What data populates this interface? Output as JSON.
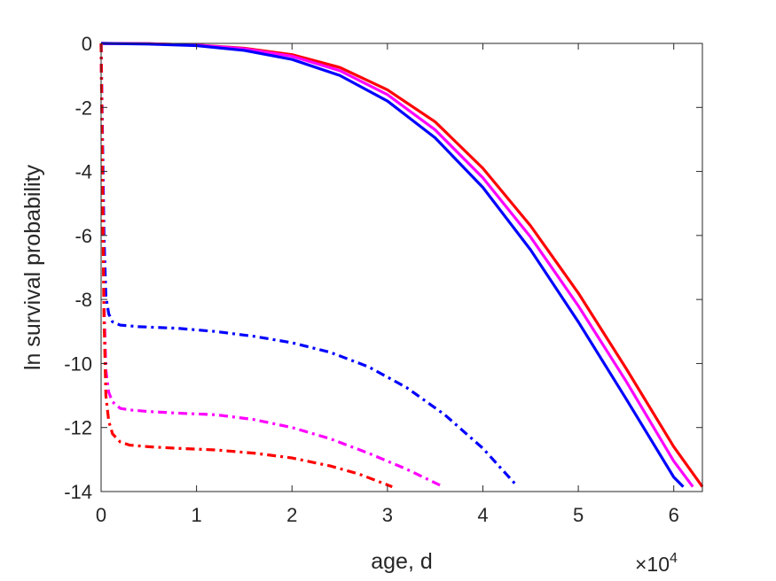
{
  "chart_data": {
    "type": "line",
    "title": "",
    "xlabel": "age, d",
    "ylabel": "ln survival probability",
    "x_exponent_label": "×10",
    "x_exponent": "4",
    "xlim": [
      0,
      63000
    ],
    "ylim": [
      -14,
      0
    ],
    "xticks": [
      0,
      10000,
      20000,
      30000,
      40000,
      50000,
      60000
    ],
    "xtick_labels": [
      "0",
      "1",
      "2",
      "3",
      "4",
      "5",
      "6"
    ],
    "yticks": [
      0,
      -2,
      -4,
      -6,
      -8,
      -10,
      -12,
      -14
    ],
    "ytick_labels": [
      "0",
      "-2",
      "-4",
      "-6",
      "-8",
      "-10",
      "-12",
      "-14"
    ],
    "grid": false,
    "series": [
      {
        "color": "#ff0000",
        "style": "solid",
        "x": [
          0,
          5000,
          10000,
          15000,
          20000,
          25000,
          30000,
          35000,
          40000,
          45000,
          50000,
          55000,
          60000,
          63000
        ],
        "y": [
          0,
          -0.01,
          -0.05,
          -0.15,
          -0.35,
          -0.75,
          -1.45,
          -2.45,
          -3.9,
          -5.7,
          -7.8,
          -10.15,
          -12.6,
          -13.85
        ]
      },
      {
        "color": "#ff00ff",
        "style": "solid",
        "x": [
          0,
          5000,
          10000,
          15000,
          20000,
          25000,
          30000,
          35000,
          40000,
          45000,
          50000,
          55000,
          60000,
          62000
        ],
        "y": [
          0,
          -0.01,
          -0.05,
          -0.17,
          -0.4,
          -0.85,
          -1.6,
          -2.7,
          -4.2,
          -6.05,
          -8.2,
          -10.55,
          -13.05,
          -13.85
        ]
      },
      {
        "color": "#0000ff",
        "style": "solid",
        "x": [
          0,
          5000,
          10000,
          15000,
          20000,
          25000,
          30000,
          35000,
          40000,
          45000,
          50000,
          55000,
          60000,
          61000
        ],
        "y": [
          0,
          -0.02,
          -0.07,
          -0.22,
          -0.5,
          -1.0,
          -1.8,
          -2.95,
          -4.5,
          -6.45,
          -8.7,
          -11.1,
          -13.55,
          -13.85
        ]
      },
      {
        "color": "#0000ff",
        "style": "dashdot",
        "x": [
          0,
          150,
          300,
          500,
          800,
          1200,
          2000,
          4000,
          8000,
          12000,
          16000,
          20000,
          24000,
          28000,
          32000,
          36000,
          40000,
          43500
        ],
        "y": [
          0,
          -3.0,
          -6.0,
          -7.9,
          -8.45,
          -8.7,
          -8.8,
          -8.85,
          -8.9,
          -9.0,
          -9.15,
          -9.35,
          -9.65,
          -10.1,
          -10.75,
          -11.6,
          -12.65,
          -13.8
        ]
      },
      {
        "color": "#ff00ff",
        "style": "dashdot",
        "x": [
          0,
          150,
          300,
          500,
          800,
          1200,
          2000,
          3000,
          5000,
          8000,
          12000,
          16000,
          20000,
          24000,
          28000,
          32000,
          35500
        ],
        "y": [
          0,
          -4.0,
          -8.0,
          -10.2,
          -10.9,
          -11.2,
          -11.4,
          -11.45,
          -11.5,
          -11.55,
          -11.6,
          -11.75,
          -12.0,
          -12.35,
          -12.8,
          -13.3,
          -13.8
        ]
      },
      {
        "color": "#ff0000",
        "style": "dashdot",
        "x": [
          0,
          150,
          300,
          500,
          800,
          1200,
          2000,
          3000,
          5000,
          8000,
          12000,
          16000,
          20000,
          24000,
          27000,
          30500
        ],
        "y": [
          0,
          -4.5,
          -8.5,
          -11.0,
          -11.8,
          -12.2,
          -12.45,
          -12.55,
          -12.6,
          -12.65,
          -12.7,
          -12.8,
          -12.95,
          -13.2,
          -13.45,
          -13.85
        ]
      }
    ]
  }
}
